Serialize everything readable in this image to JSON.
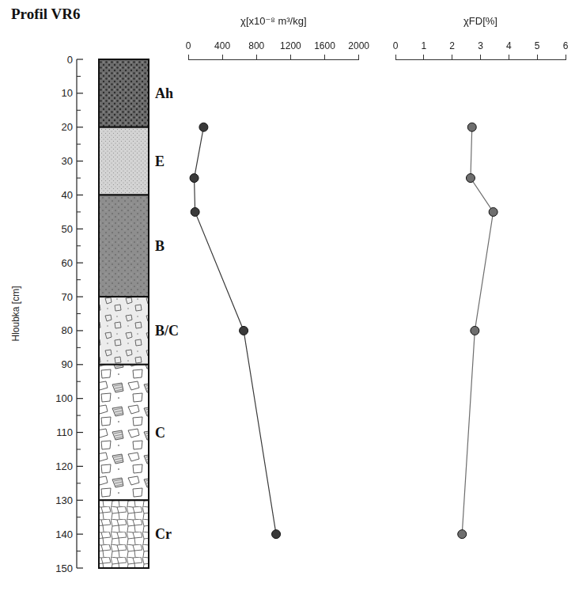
{
  "title": "Profil VR6",
  "depth_axis": {
    "label": "Hloubka [cm]",
    "ylim": [
      0,
      150
    ],
    "yticks": [
      0,
      10,
      20,
      30,
      40,
      50,
      60,
      70,
      80,
      90,
      100,
      110,
      120,
      130,
      140,
      150
    ]
  },
  "horizons": [
    {
      "name": "Ah",
      "top": 0,
      "bottom": 20
    },
    {
      "name": "E",
      "top": 20,
      "bottom": 40
    },
    {
      "name": "B",
      "top": 40,
      "bottom": 70
    },
    {
      "name": "B/C",
      "top": 70,
      "bottom": 90
    },
    {
      "name": "C",
      "top": 90,
      "bottom": 130
    },
    {
      "name": "Cr",
      "top": 130,
      "bottom": 150
    }
  ],
  "chart_data": [
    {
      "type": "line",
      "xlabel": "χ[x10⁻⁸ m³/kg]",
      "x": [
        180,
        70,
        80,
        650,
        1030
      ],
      "y": [
        20,
        35,
        45,
        80,
        140
      ],
      "xlim": [
        0,
        2000
      ],
      "xticks": [
        0,
        400,
        800,
        1200,
        1600,
        2000
      ],
      "ylim": [
        0,
        150
      ],
      "color": "#3a3a3a",
      "marker": "circle",
      "grid": false,
      "tick_labels": "x"
    },
    {
      "type": "line",
      "xlabel": "χFD[%]",
      "x": [
        2.7,
        2.65,
        3.45,
        2.8,
        2.35
      ],
      "y": [
        20,
        35,
        45,
        80,
        140
      ],
      "xlim": [
        0,
        6
      ],
      "xticks": [
        0,
        1,
        2,
        3,
        4,
        5,
        6
      ],
      "ylim": [
        0,
        150
      ],
      "color": "#6e6e6e",
      "marker": "circle",
      "grid": false,
      "tick_labels": "x"
    }
  ]
}
